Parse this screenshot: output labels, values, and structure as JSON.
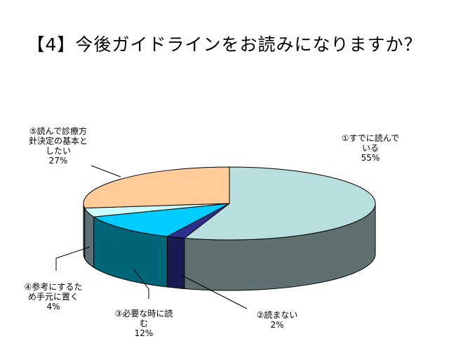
{
  "chart_data": {
    "type": "pie",
    "title": "【4】今後ガイドラインをお読みになりますか？",
    "slices": [
      {
        "label": "①すでに読んで\nいる",
        "value": 55,
        "pct_label": "55%",
        "color": "#b8dede",
        "side": "#5f7070"
      },
      {
        "label": "②読まない",
        "value": 2,
        "pct_label": "2%",
        "color": "#2e3090",
        "side": "#1a1a55"
      },
      {
        "label": "③必要な時に読\nむ",
        "value": 12,
        "pct_label": "12%",
        "color": "#00ccff",
        "side": "#006677"
      },
      {
        "label": "④参考にするた\nめ手元に置く",
        "value": 4,
        "pct_label": "4%",
        "color": "#ccffff",
        "side": "#5f7070"
      },
      {
        "label": "⑤読んで診療方\n針決定の基本と\nしたい",
        "value": 27,
        "pct_label": "27%",
        "color": "#ffcc99",
        "side": "#5f7070"
      }
    ]
  }
}
